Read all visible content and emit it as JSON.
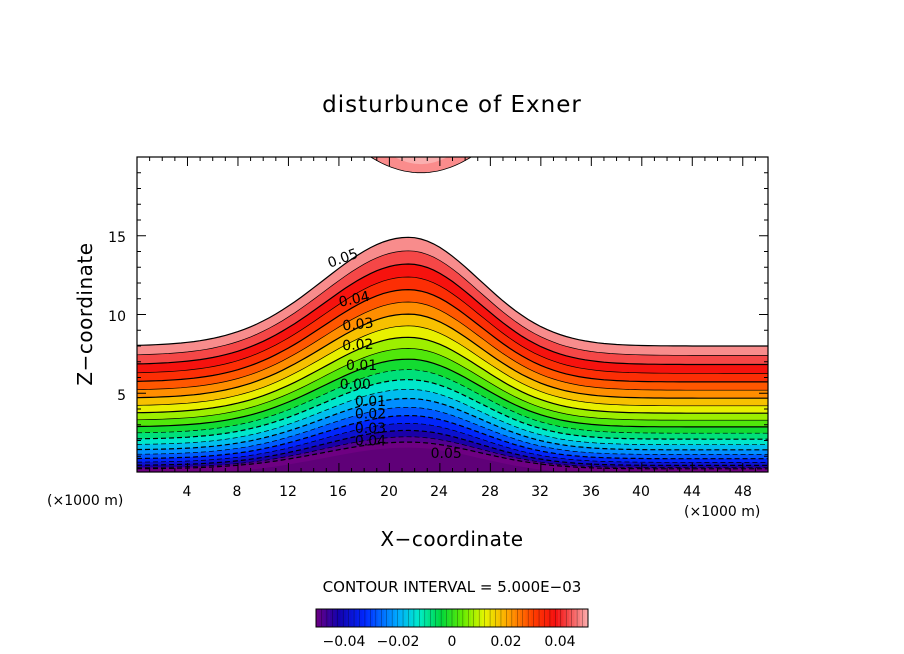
{
  "chart_data": {
    "type": "contour",
    "title": "disturbunce of Exner",
    "xlabel": "X−coordinate",
    "ylabel": "Z−coordinate",
    "x_unit": "(×1000 m)",
    "y_unit": "(×1000 m)",
    "xlim": [
      0,
      50
    ],
    "ylim": [
      0,
      20
    ],
    "xticks": [
      "4",
      "8",
      "12",
      "16",
      "20",
      "24",
      "28",
      "32",
      "36",
      "40",
      "44",
      "48"
    ],
    "yticks": [
      "5",
      "10",
      "15"
    ],
    "contour_interval_text": "CONTOUR INTERVAL = 5.000E−03",
    "contour_labels": [
      {
        "text": "0.05",
        "x": 16.3,
        "z": 13.6,
        "angle": -20
      },
      {
        "text": "0.04",
        "x": 17.2,
        "z": 11.0,
        "angle": -12
      },
      {
        "text": "0.03",
        "x": 17.5,
        "z": 9.4,
        "angle": -6
      },
      {
        "text": "0.02",
        "x": 17.5,
        "z": 8.1,
        "angle": -3
      },
      {
        "text": "0.01",
        "x": 17.8,
        "z": 6.8,
        "angle": 0
      },
      {
        "text": "0.00",
        "x": 17.3,
        "z": 5.6,
        "angle": 0
      },
      {
        "text": "0.01",
        "x": 18.5,
        "z": 4.5,
        "angle": 0
      },
      {
        "text": "0.02",
        "x": 18.5,
        "z": 3.7,
        "angle": 0
      },
      {
        "text": "0.03",
        "x": 18.5,
        "z": 2.8,
        "angle": 0
      },
      {
        "text": "0.04",
        "x": 18.5,
        "z": 2.0,
        "angle": 0
      },
      {
        "text": "0.05",
        "x": 24.5,
        "z": 1.2,
        "angle": 0
      }
    ],
    "colorbar": {
      "range": [
        -0.05,
        0.05
      ],
      "ticks": [
        "−0.04",
        "−0.02",
        "0",
        "0.02",
        "0.04"
      ],
      "tick_values": [
        -0.04,
        -0.02,
        0,
        0.02,
        0.04
      ]
    },
    "field": {
      "description_levels": "contours every 0.005 from -0.05 to 0.05; dashed below zero",
      "mountain_peak_x": 21.5,
      "upper_lobe_peak_x": 22.5,
      "upper_lobe_bottom_z": 19.0
    }
  }
}
